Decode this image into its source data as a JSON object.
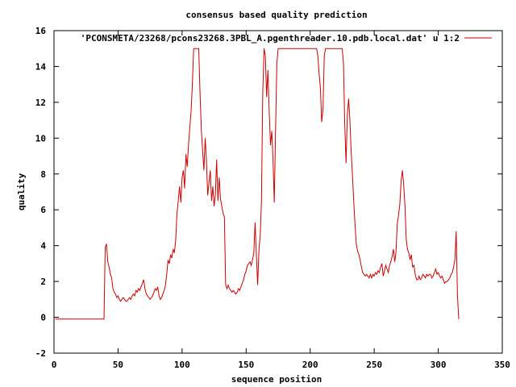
{
  "chart_data": {
    "type": "line",
    "title": "consensus based quality prediction",
    "xlabel": "sequence position",
    "ylabel": "quality",
    "xlim": [
      0,
      350
    ],
    "ylim": [
      -2,
      16
    ],
    "xticks": [
      0,
      50,
      100,
      150,
      200,
      250,
      300,
      350
    ],
    "yticks": [
      -2,
      0,
      2,
      4,
      6,
      8,
      10,
      12,
      14,
      16
    ],
    "grid": false,
    "legend_position": "top-right",
    "series": [
      {
        "name": "'PCONSMETA/23268/pcons23268.3PBL_A.pgenthreader.10.pdb.local.dat' u 1:2",
        "color": "#cc0000",
        "points": [
          [
            1,
            -0.1
          ],
          [
            5,
            -0.1
          ],
          [
            10,
            -0.1
          ],
          [
            15,
            -0.1
          ],
          [
            20,
            -0.1
          ],
          [
            25,
            -0.1
          ],
          [
            30,
            -0.1
          ],
          [
            35,
            -0.1
          ],
          [
            39,
            -0.1
          ],
          [
            40,
            3.9
          ],
          [
            41,
            4.1
          ],
          [
            42,
            3.1
          ],
          [
            43,
            2.8
          ],
          [
            44,
            2.4
          ],
          [
            45,
            2.2
          ],
          [
            46,
            1.6
          ],
          [
            47,
            1.4
          ],
          [
            48,
            1.3
          ],
          [
            49,
            1.1
          ],
          [
            50,
            1.2
          ],
          [
            51,
            1.0
          ],
          [
            52,
            0.9
          ],
          [
            53,
            1.0
          ],
          [
            54,
            1.1
          ],
          [
            55,
            1.0
          ],
          [
            56,
            0.9
          ],
          [
            57,
            0.9
          ],
          [
            58,
            1.0
          ],
          [
            59,
            1.1
          ],
          [
            60,
            1.0
          ],
          [
            61,
            1.2
          ],
          [
            62,
            1.3
          ],
          [
            63,
            1.2
          ],
          [
            64,
            1.5
          ],
          [
            65,
            1.4
          ],
          [
            66,
            1.6
          ],
          [
            67,
            1.5
          ],
          [
            68,
            1.7
          ],
          [
            69,
            1.9
          ],
          [
            70,
            2.1
          ],
          [
            71,
            1.6
          ],
          [
            72,
            1.3
          ],
          [
            73,
            1.2
          ],
          [
            74,
            1.1
          ],
          [
            75,
            1.0
          ],
          [
            76,
            1.1
          ],
          [
            77,
            1.2
          ],
          [
            78,
            1.4
          ],
          [
            79,
            1.6
          ],
          [
            80,
            1.5
          ],
          [
            81,
            1.7
          ],
          [
            82,
            1.2
          ],
          [
            83,
            1.0
          ],
          [
            84,
            1.1
          ],
          [
            85,
            1.3
          ],
          [
            86,
            1.5
          ],
          [
            87,
            1.8
          ],
          [
            88,
            2.4
          ],
          [
            89,
            3.2
          ],
          [
            90,
            3.0
          ],
          [
            91,
            3.5
          ],
          [
            92,
            3.3
          ],
          [
            93,
            3.8
          ],
          [
            94,
            3.6
          ],
          [
            95,
            4.3
          ],
          [
            96,
            5.8
          ],
          [
            97,
            6.5
          ],
          [
            98,
            7.3
          ],
          [
            99,
            6.4
          ],
          [
            100,
            7.8
          ],
          [
            101,
            8.2
          ],
          [
            102,
            7.2
          ],
          [
            103,
            9.1
          ],
          [
            104,
            8.4
          ],
          [
            105,
            9.6
          ],
          [
            106,
            10.6
          ],
          [
            107,
            11.5
          ],
          [
            108,
            13.0
          ],
          [
            109,
            15.0
          ],
          [
            110,
            15.0
          ],
          [
            111,
            15.0
          ],
          [
            112,
            15.0
          ],
          [
            113,
            15.0
          ],
          [
            114,
            12.5
          ],
          [
            115,
            10.5
          ],
          [
            116,
            9.3
          ],
          [
            117,
            8.2
          ],
          [
            118,
            10.0
          ],
          [
            119,
            8.8
          ],
          [
            120,
            6.8
          ],
          [
            121,
            7.5
          ],
          [
            122,
            8.2
          ],
          [
            123,
            6.5
          ],
          [
            124,
            7.3
          ],
          [
            125,
            6.2
          ],
          [
            126,
            6.9
          ],
          [
            127,
            8.8
          ],
          [
            128,
            6.5
          ],
          [
            129,
            7.8
          ],
          [
            130,
            6.6
          ],
          [
            131,
            6.2
          ],
          [
            132,
            5.8
          ],
          [
            133,
            5.6
          ],
          [
            134,
            1.8
          ],
          [
            135,
            1.6
          ],
          [
            136,
            1.8
          ],
          [
            137,
            1.6
          ],
          [
            138,
            1.5
          ],
          [
            139,
            1.4
          ],
          [
            140,
            1.5
          ],
          [
            141,
            1.4
          ],
          [
            142,
            1.3
          ],
          [
            143,
            1.4
          ],
          [
            144,
            1.6
          ],
          [
            145,
            1.5
          ],
          [
            146,
            1.7
          ],
          [
            147,
            1.9
          ],
          [
            148,
            2.1
          ],
          [
            149,
            2.4
          ],
          [
            150,
            2.6
          ],
          [
            151,
            2.9
          ],
          [
            152,
            3.0
          ],
          [
            153,
            3.1
          ],
          [
            154,
            2.9
          ],
          [
            155,
            3.2
          ],
          [
            156,
            3.6
          ],
          [
            157,
            5.3
          ],
          [
            158,
            3.5
          ],
          [
            159,
            1.8
          ],
          [
            160,
            3.8
          ],
          [
            161,
            4.6
          ],
          [
            162,
            6.5
          ],
          [
            163,
            12.5
          ],
          [
            164,
            15.0
          ],
          [
            165,
            14.6
          ],
          [
            166,
            12.3
          ],
          [
            167,
            13.8
          ],
          [
            168,
            11.5
          ],
          [
            169,
            9.6
          ],
          [
            170,
            10.4
          ],
          [
            171,
            8.8
          ],
          [
            172,
            6.4
          ],
          [
            173,
            10.5
          ],
          [
            174,
            14.2
          ],
          [
            175,
            15.0
          ],
          [
            180,
            15.0
          ],
          [
            185,
            15.0
          ],
          [
            190,
            15.0
          ],
          [
            195,
            15.0
          ],
          [
            200,
            15.0
          ],
          [
            205,
            15.0
          ],
          [
            206,
            14.6
          ],
          [
            207,
            13.6
          ],
          [
            208,
            12.8
          ],
          [
            209,
            10.9
          ],
          [
            210,
            11.6
          ],
          [
            211,
            14.6
          ],
          [
            212,
            15.0
          ],
          [
            215,
            15.0
          ],
          [
            220,
            15.0
          ],
          [
            225,
            15.0
          ],
          [
            226,
            14.2
          ],
          [
            227,
            10.8
          ],
          [
            228,
            8.6
          ],
          [
            229,
            11.3
          ],
          [
            230,
            12.2
          ],
          [
            231,
            11.0
          ],
          [
            232,
            9.3
          ],
          [
            233,
            8.0
          ],
          [
            234,
            6.5
          ],
          [
            235,
            5.2
          ],
          [
            236,
            4.1
          ],
          [
            237,
            3.7
          ],
          [
            238,
            3.5
          ],
          [
            239,
            3.2
          ],
          [
            240,
            2.8
          ],
          [
            241,
            2.5
          ],
          [
            242,
            2.4
          ],
          [
            243,
            2.3
          ],
          [
            244,
            2.4
          ],
          [
            245,
            2.3
          ],
          [
            246,
            2.2
          ],
          [
            247,
            2.4
          ],
          [
            248,
            2.2
          ],
          [
            249,
            2.4
          ],
          [
            250,
            2.3
          ],
          [
            251,
            2.5
          ],
          [
            252,
            2.4
          ],
          [
            253,
            2.6
          ],
          [
            254,
            2.5
          ],
          [
            255,
            2.8
          ],
          [
            256,
            3.0
          ],
          [
            257,
            2.3
          ],
          [
            258,
            2.6
          ],
          [
            259,
            2.9
          ],
          [
            260,
            2.7
          ],
          [
            261,
            2.5
          ],
          [
            262,
            2.9
          ],
          [
            263,
            3.1
          ],
          [
            264,
            3.4
          ],
          [
            265,
            3.8
          ],
          [
            266,
            3.1
          ],
          [
            267,
            3.6
          ],
          [
            268,
            5.2
          ],
          [
            269,
            5.7
          ],
          [
            270,
            6.3
          ],
          [
            271,
            7.6
          ],
          [
            272,
            8.2
          ],
          [
            273,
            7.4
          ],
          [
            274,
            6.2
          ],
          [
            275,
            4.3
          ],
          [
            276,
            3.8
          ],
          [
            277,
            3.6
          ],
          [
            278,
            3.2
          ],
          [
            279,
            3.5
          ],
          [
            280,
            2.8
          ],
          [
            281,
            2.9
          ],
          [
            282,
            2.4
          ],
          [
            283,
            2.1
          ],
          [
            284,
            2.1
          ],
          [
            285,
            2.3
          ],
          [
            286,
            2.1
          ],
          [
            287,
            2.2
          ],
          [
            288,
            2.4
          ],
          [
            289,
            2.3
          ],
          [
            290,
            2.2
          ],
          [
            291,
            2.4
          ],
          [
            292,
            2.3
          ],
          [
            293,
            2.4
          ],
          [
            294,
            2.4
          ],
          [
            295,
            2.2
          ],
          [
            296,
            2.3
          ],
          [
            297,
            2.5
          ],
          [
            298,
            2.7
          ],
          [
            299,
            2.4
          ],
          [
            300,
            2.5
          ],
          [
            301,
            2.3
          ],
          [
            302,
            2.2
          ],
          [
            303,
            2.3
          ],
          [
            304,
            2.1
          ],
          [
            305,
            1.9
          ],
          [
            306,
            2.0
          ],
          [
            307,
            2.0
          ],
          [
            308,
            2.1
          ],
          [
            309,
            2.2
          ],
          [
            310,
            2.4
          ],
          [
            311,
            2.5
          ],
          [
            312,
            2.8
          ],
          [
            313,
            3.2
          ],
          [
            314,
            4.8
          ],
          [
            315,
            1.2
          ],
          [
            316,
            -0.1
          ]
        ]
      }
    ]
  }
}
